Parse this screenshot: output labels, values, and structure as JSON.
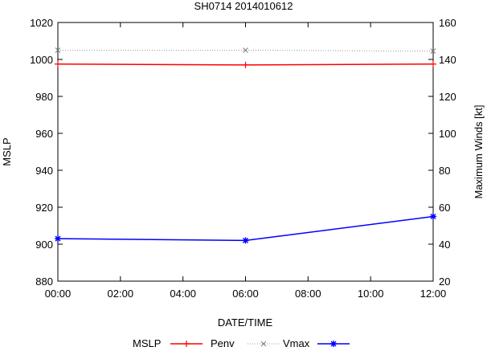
{
  "chart_data": {
    "type": "line",
    "title": "SH0714 2014010612",
    "xlabel": "DATE/TIME",
    "ylabel": "MSLP",
    "y2label": "Maximum Winds [kt]",
    "x_ticks": [
      "00:00",
      "02:00",
      "04:00",
      "06:00",
      "08:00",
      "10:00",
      "12:00"
    ],
    "x_hours": [
      0,
      6,
      12
    ],
    "xlim": [
      0,
      12
    ],
    "ylim": [
      880,
      1020
    ],
    "y_ticks": [
      880,
      900,
      920,
      940,
      960,
      980,
      1000,
      1020
    ],
    "y2lim": [
      20,
      160
    ],
    "y2_ticks": [
      20,
      40,
      60,
      80,
      100,
      120,
      140,
      160
    ],
    "grid": false,
    "legend_position": "bottom",
    "series": [
      {
        "name": "MSLP",
        "axis": "left",
        "color": "#ff0000",
        "marker": "plus",
        "dash": "solid",
        "values": [
          997.5,
          997,
          997.5
        ]
      },
      {
        "name": "Penv",
        "axis": "left",
        "color": "#7f7f7f",
        "marker": "cross",
        "dash": "dotted",
        "values": [
          1005,
          1005,
          1004.5
        ]
      },
      {
        "name": "Vmax",
        "axis": "right",
        "color": "#0000ff",
        "marker": "star",
        "dash": "solid",
        "values": [
          43,
          42,
          55
        ]
      }
    ]
  }
}
